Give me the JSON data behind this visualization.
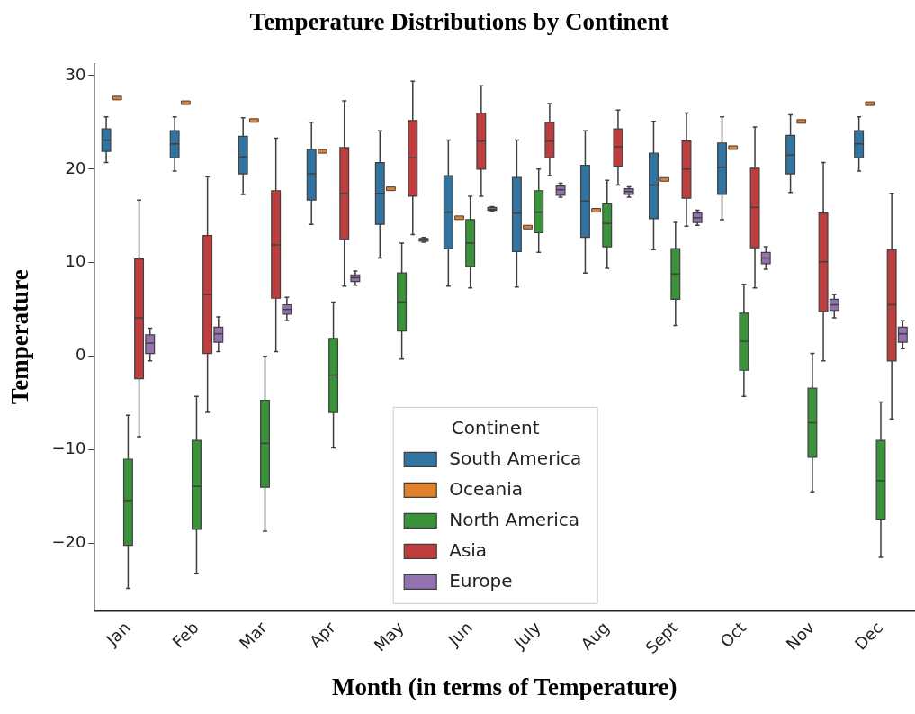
{
  "chart_data": {
    "type": "box",
    "title": "Temperature Distributions by Continent",
    "xlabel": "Month (in terms of Temperature)",
    "ylabel": "Temperature",
    "legend_title": "Continent",
    "legend": "bottom",
    "grid": false,
    "categories": [
      "Jan",
      "Feb",
      "Mar",
      "Apr",
      "May",
      "Jun",
      "July",
      "Aug",
      "Sept",
      "Oct",
      "Nov",
      "Dec"
    ],
    "ylim": [
      -27.2,
      31.3
    ],
    "yticks": [
      {
        "value": -20,
        "label": "−20"
      },
      {
        "value": -10,
        "label": "−10"
      },
      0,
      10,
      20,
      30
    ],
    "series": [
      {
        "name": "South America",
        "color": "#3274a1",
        "boxes": [
          {
            "low": 20.7,
            "q1": 21.9,
            "median": 23.1,
            "q3": 24.3,
            "high": 25.6
          },
          {
            "low": 19.8,
            "q1": 21.2,
            "median": 22.7,
            "q3": 24.1,
            "high": 25.6
          },
          {
            "low": 17.3,
            "q1": 19.5,
            "median": 21.3,
            "q3": 23.5,
            "high": 25.5
          },
          {
            "low": 14.1,
            "q1": 16.7,
            "median": 19.5,
            "q3": 22.1,
            "high": 25.0
          },
          {
            "low": 10.5,
            "q1": 14.1,
            "median": 17.4,
            "q3": 20.7,
            "high": 24.1
          },
          {
            "low": 7.5,
            "q1": 11.5,
            "median": 15.4,
            "q3": 19.3,
            "high": 23.1
          },
          {
            "low": 7.4,
            "q1": 11.2,
            "median": 15.3,
            "q3": 19.1,
            "high": 23.1
          },
          {
            "low": 8.9,
            "q1": 12.7,
            "median": 16.6,
            "q3": 20.4,
            "high": 24.1
          },
          {
            "low": 11.4,
            "q1": 14.7,
            "median": 18.3,
            "q3": 21.7,
            "high": 25.1
          },
          {
            "low": 14.6,
            "q1": 17.3,
            "median": 20.2,
            "q3": 22.8,
            "high": 25.6
          },
          {
            "low": 17.5,
            "q1": 19.5,
            "median": 21.5,
            "q3": 23.6,
            "high": 25.8
          },
          {
            "low": 19.8,
            "q1": 21.2,
            "median": 22.7,
            "q3": 24.1,
            "high": 25.6
          }
        ]
      },
      {
        "name": "Oceania",
        "color": "#e1812c",
        "boxes": [
          {
            "low": 27.6,
            "q1": 27.6,
            "median": 27.6,
            "q3": 27.6,
            "high": 27.6
          },
          {
            "low": 27.1,
            "q1": 27.1,
            "median": 27.1,
            "q3": 27.1,
            "high": 27.1
          },
          {
            "low": 25.2,
            "q1": 25.2,
            "median": 25.2,
            "q3": 25.2,
            "high": 25.2
          },
          {
            "low": 21.9,
            "q1": 21.9,
            "median": 21.9,
            "q3": 21.9,
            "high": 21.9
          },
          {
            "low": 17.9,
            "q1": 17.9,
            "median": 17.9,
            "q3": 17.9,
            "high": 17.9
          },
          {
            "low": 14.8,
            "q1": 14.8,
            "median": 14.8,
            "q3": 14.8,
            "high": 14.8
          },
          {
            "low": 13.8,
            "q1": 13.8,
            "median": 13.8,
            "q3": 13.8,
            "high": 13.8
          },
          {
            "low": 15.6,
            "q1": 15.6,
            "median": 15.6,
            "q3": 15.6,
            "high": 15.6
          },
          {
            "low": 18.9,
            "q1": 18.9,
            "median": 18.9,
            "q3": 18.9,
            "high": 18.9
          },
          {
            "low": 22.3,
            "q1": 22.3,
            "median": 22.3,
            "q3": 22.3,
            "high": 22.3
          },
          {
            "low": 25.1,
            "q1": 25.1,
            "median": 25.1,
            "q3": 25.1,
            "high": 25.1
          },
          {
            "low": 27.0,
            "q1": 27.0,
            "median": 27.0,
            "q3": 27.0,
            "high": 27.0
          }
        ]
      },
      {
        "name": "North America",
        "color": "#3a923a",
        "boxes": [
          {
            "low": -24.8,
            "q1": -20.2,
            "median": -15.4,
            "q3": -11.0,
            "high": -6.3
          },
          {
            "low": -23.2,
            "q1": -18.5,
            "median": -13.9,
            "q3": -9.0,
            "high": -4.3
          },
          {
            "low": -18.7,
            "q1": -14.0,
            "median": -9.3,
            "q3": -4.7,
            "high": 0.0
          },
          {
            "low": -9.8,
            "q1": -6.0,
            "median": -2.0,
            "q3": 1.9,
            "high": 5.8
          },
          {
            "low": -0.3,
            "q1": 2.7,
            "median": 5.8,
            "q3": 8.9,
            "high": 12.1
          },
          {
            "low": 7.3,
            "q1": 9.6,
            "median": 12.1,
            "q3": 14.6,
            "high": 17.1
          },
          {
            "low": 11.1,
            "q1": 13.2,
            "median": 15.4,
            "q3": 17.7,
            "high": 20.0
          },
          {
            "low": 9.4,
            "q1": 11.7,
            "median": 14.2,
            "q3": 16.3,
            "high": 18.8
          },
          {
            "low": 3.3,
            "q1": 6.1,
            "median": 8.8,
            "q3": 11.5,
            "high": 14.3
          },
          {
            "low": -4.3,
            "q1": -1.5,
            "median": 1.6,
            "q3": 4.6,
            "high": 7.7
          },
          {
            "low": -14.5,
            "q1": -10.8,
            "median": -7.1,
            "q3": -3.4,
            "high": 0.3
          },
          {
            "low": -21.5,
            "q1": -17.4,
            "median": -13.3,
            "q3": -9.0,
            "high": -4.9
          }
        ]
      },
      {
        "name": "Asia",
        "color": "#c03d3e",
        "boxes": [
          {
            "low": -8.6,
            "q1": -2.4,
            "median": 4.1,
            "q3": 10.4,
            "high": 16.7
          },
          {
            "low": -6.0,
            "q1": 0.3,
            "median": 6.6,
            "q3": 12.9,
            "high": 19.2
          },
          {
            "low": 0.5,
            "q1": 6.2,
            "median": 11.9,
            "q3": 17.7,
            "high": 23.3
          },
          {
            "low": 7.5,
            "q1": 12.5,
            "median": 17.4,
            "q3": 22.3,
            "high": 27.3
          },
          {
            "low": 13.0,
            "q1": 17.1,
            "median": 21.2,
            "q3": 25.2,
            "high": 29.4
          },
          {
            "low": 17.1,
            "q1": 20.0,
            "median": 23.0,
            "q3": 26.0,
            "high": 28.9
          },
          {
            "low": 19.3,
            "q1": 21.2,
            "median": 23.0,
            "q3": 25.0,
            "high": 27.0
          },
          {
            "low": 18.3,
            "q1": 20.3,
            "median": 22.4,
            "q3": 24.3,
            "high": 26.3
          },
          {
            "low": 13.9,
            "q1": 16.9,
            "median": 20.0,
            "q3": 23.0,
            "high": 26.0
          },
          {
            "low": 7.3,
            "q1": 11.6,
            "median": 15.9,
            "q3": 20.1,
            "high": 24.5
          },
          {
            "low": -0.5,
            "q1": 4.8,
            "median": 10.1,
            "q3": 15.3,
            "high": 20.7
          },
          {
            "low": -6.7,
            "q1": -0.5,
            "median": 5.5,
            "q3": 11.4,
            "high": 17.4
          }
        ]
      },
      {
        "name": "Europe",
        "color": "#9372b2",
        "boxes": [
          {
            "low": -0.5,
            "q1": 0.3,
            "median": 1.4,
            "q3": 2.3,
            "high": 3.0
          },
          {
            "low": 0.5,
            "q1": 1.5,
            "median": 2.4,
            "q3": 3.1,
            "high": 4.2
          },
          {
            "low": 3.8,
            "q1": 4.5,
            "median": 5.0,
            "q3": 5.5,
            "high": 6.3
          },
          {
            "low": 7.6,
            "q1": 8.0,
            "median": 8.4,
            "q3": 8.7,
            "high": 9.1
          },
          {
            "low": 12.2,
            "q1": 12.3,
            "median": 12.5,
            "q3": 12.6,
            "high": 12.7
          },
          {
            "low": 15.5,
            "q1": 15.6,
            "median": 15.7,
            "q3": 15.9,
            "high": 16.0
          },
          {
            "low": 17.0,
            "q1": 17.2,
            "median": 17.8,
            "q3": 18.2,
            "high": 18.5
          },
          {
            "low": 17.0,
            "q1": 17.3,
            "median": 17.6,
            "q3": 17.9,
            "high": 18.1
          },
          {
            "low": 14.0,
            "q1": 14.3,
            "median": 14.8,
            "q3": 15.3,
            "high": 15.6
          },
          {
            "low": 9.3,
            "q1": 9.9,
            "median": 10.5,
            "q3": 11.1,
            "high": 11.7
          },
          {
            "low": 4.1,
            "q1": 4.9,
            "median": 5.5,
            "q3": 6.1,
            "high": 6.6
          },
          {
            "low": 0.8,
            "q1": 1.5,
            "median": 2.4,
            "q3": 3.1,
            "high": 3.8
          }
        ]
      }
    ]
  }
}
